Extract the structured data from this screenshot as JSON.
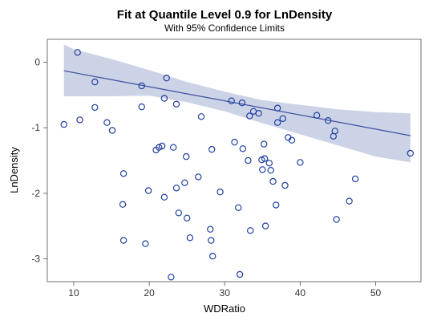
{
  "chart_data": {
    "type": "scatter",
    "title": "Fit at Quantile Level 0.9 for LnDensity",
    "subtitle": "With 95% Confidence Limits",
    "xlabel": "WDRatio",
    "ylabel": "LnDensity",
    "xlim": [
      6.5,
      56
    ],
    "ylim": [
      -3.35,
      0.35
    ],
    "xticks": [
      10,
      20,
      30,
      40,
      50
    ],
    "yticks": [
      0,
      -1,
      -2,
      -3
    ],
    "grid": false,
    "colors": {
      "marker": "#1f3fa0",
      "fit_line": "#3a4fa0",
      "band": "#cdd3e6",
      "frame": "#6f6f6f"
    },
    "fit_line": {
      "x": [
        8.7,
        54.6
      ],
      "y": [
        -0.13,
        -1.12
      ]
    },
    "confidence_band": {
      "x": [
        8.7,
        10,
        15,
        20,
        25,
        30,
        35,
        40,
        45,
        50,
        54.6
      ],
      "upper": [
        0.27,
        0.2,
        0.05,
        -0.12,
        -0.3,
        -0.45,
        -0.58,
        -0.65,
        -0.72,
        -0.76,
        -0.78
      ],
      "lower": [
        -0.52,
        -0.52,
        -0.52,
        -0.51,
        -0.61,
        -0.75,
        -0.93,
        -1.1,
        -1.27,
        -1.44,
        -1.53
      ]
    },
    "points": [
      {
        "x": 8.7,
        "y": -0.95
      },
      {
        "x": 10.5,
        "y": 0.15
      },
      {
        "x": 10.8,
        "y": -0.88
      },
      {
        "x": 12.8,
        "y": -0.3
      },
      {
        "x": 12.8,
        "y": -0.69
      },
      {
        "x": 14.4,
        "y": -0.92
      },
      {
        "x": 15.1,
        "y": -1.04
      },
      {
        "x": 16.6,
        "y": -1.7
      },
      {
        "x": 16.5,
        "y": -2.17
      },
      {
        "x": 16.6,
        "y": -2.72
      },
      {
        "x": 19.0,
        "y": -0.36
      },
      {
        "x": 19.0,
        "y": -0.68
      },
      {
        "x": 19.5,
        "y": -2.77
      },
      {
        "x": 19.9,
        "y": -1.96
      },
      {
        "x": 20.9,
        "y": -1.34
      },
      {
        "x": 21.3,
        "y": -1.3
      },
      {
        "x": 21.7,
        "y": -1.28
      },
      {
        "x": 22.0,
        "y": -0.55
      },
      {
        "x": 22.0,
        "y": -2.06
      },
      {
        "x": 22.3,
        "y": -0.24
      },
      {
        "x": 22.9,
        "y": -3.28
      },
      {
        "x": 23.2,
        "y": -1.3
      },
      {
        "x": 23.6,
        "y": -0.64
      },
      {
        "x": 23.6,
        "y": -1.92
      },
      {
        "x": 23.9,
        "y": -2.3
      },
      {
        "x": 24.7,
        "y": -1.84
      },
      {
        "x": 24.9,
        "y": -1.44
      },
      {
        "x": 25.0,
        "y": -2.38
      },
      {
        "x": 25.4,
        "y": -2.68
      },
      {
        "x": 26.5,
        "y": -1.75
      },
      {
        "x": 26.9,
        "y": -0.83
      },
      {
        "x": 28.1,
        "y": -2.55
      },
      {
        "x": 28.2,
        "y": -2.72
      },
      {
        "x": 28.3,
        "y": -1.33
      },
      {
        "x": 28.4,
        "y": -2.96
      },
      {
        "x": 29.4,
        "y": -1.98
      },
      {
        "x": 30.9,
        "y": -0.59
      },
      {
        "x": 31.3,
        "y": -1.22
      },
      {
        "x": 31.8,
        "y": -2.22
      },
      {
        "x": 32.0,
        "y": -3.24
      },
      {
        "x": 32.3,
        "y": -0.62
      },
      {
        "x": 32.4,
        "y": -1.32
      },
      {
        "x": 33.1,
        "y": -1.5
      },
      {
        "x": 33.3,
        "y": -0.82
      },
      {
        "x": 33.4,
        "y": -2.57
      },
      {
        "x": 33.8,
        "y": -0.75
      },
      {
        "x": 34.5,
        "y": -0.78
      },
      {
        "x": 34.9,
        "y": -1.49
      },
      {
        "x": 35.0,
        "y": -1.64
      },
      {
        "x": 35.2,
        "y": -1.25
      },
      {
        "x": 35.3,
        "y": -1.47
      },
      {
        "x": 35.4,
        "y": -2.5
      },
      {
        "x": 35.9,
        "y": -1.54
      },
      {
        "x": 36.1,
        "y": -1.65
      },
      {
        "x": 36.4,
        "y": -1.82
      },
      {
        "x": 36.8,
        "y": -2.18
      },
      {
        "x": 37.0,
        "y": -0.7
      },
      {
        "x": 37.0,
        "y": -0.92
      },
      {
        "x": 37.7,
        "y": -0.86
      },
      {
        "x": 38.0,
        "y": -1.88
      },
      {
        "x": 38.4,
        "y": -1.15
      },
      {
        "x": 38.9,
        "y": -1.19
      },
      {
        "x": 40.0,
        "y": -1.53
      },
      {
        "x": 42.2,
        "y": -0.81
      },
      {
        "x": 43.7,
        "y": -0.89
      },
      {
        "x": 44.4,
        "y": -1.13
      },
      {
        "x": 44.6,
        "y": -1.05
      },
      {
        "x": 44.8,
        "y": -2.4
      },
      {
        "x": 46.5,
        "y": -2.12
      },
      {
        "x": 47.3,
        "y": -1.78
      },
      {
        "x": 54.6,
        "y": -1.39
      }
    ]
  }
}
